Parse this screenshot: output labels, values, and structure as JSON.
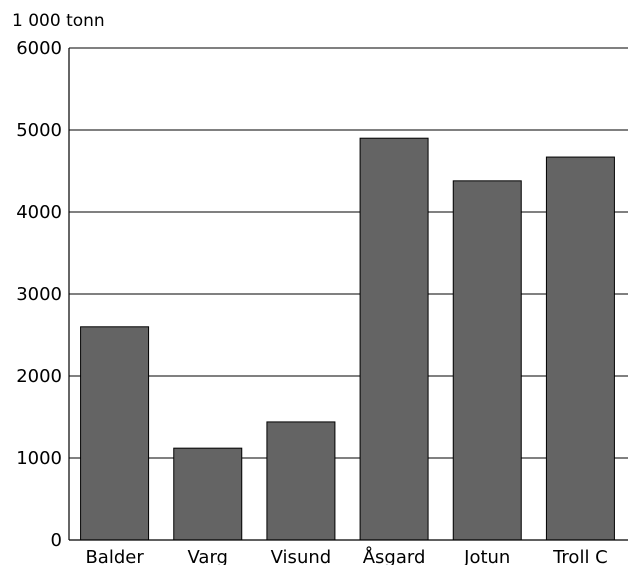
{
  "chart_data": {
    "type": "bar",
    "unit_label": "1 000 tonn",
    "categories": [
      "Balder",
      "Varg",
      "Visund",
      "Åsgard",
      "Jotun",
      "Troll C"
    ],
    "values": [
      2600,
      1120,
      1440,
      4900,
      4380,
      4670
    ],
    "yticks": [
      0,
      1000,
      2000,
      3000,
      4000,
      5000,
      6000
    ],
    "ylim": [
      0,
      6000
    ],
    "grid": true,
    "bar_color": "#646464"
  }
}
